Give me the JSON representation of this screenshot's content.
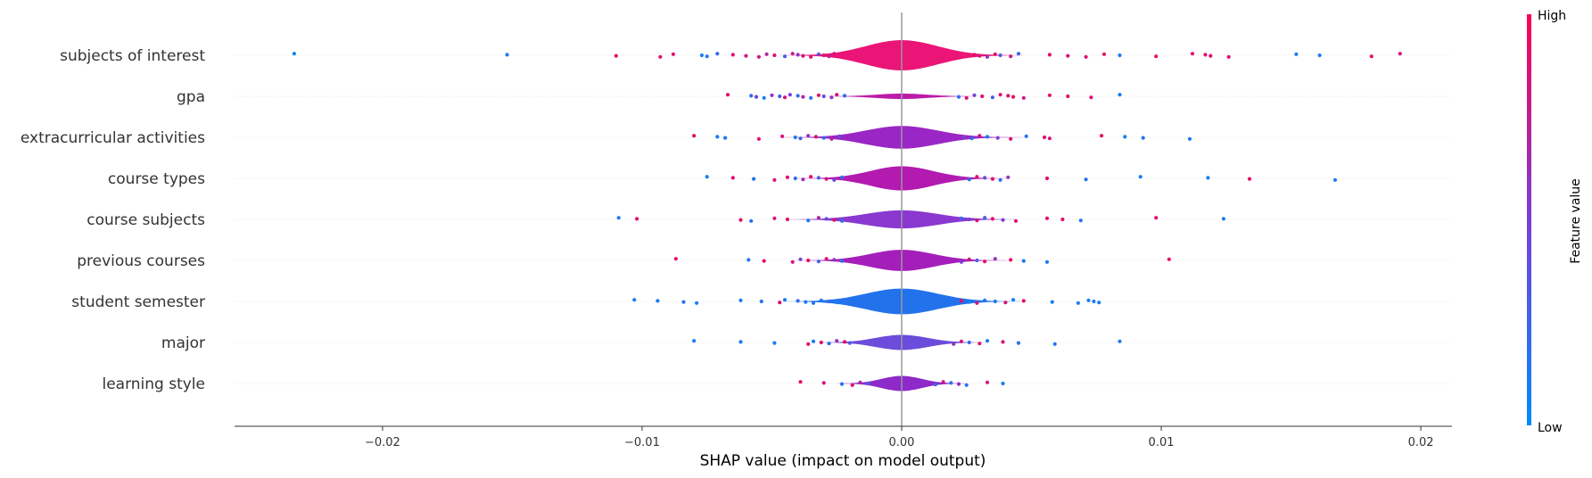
{
  "chart_data": {
    "type": "violin",
    "xlabel": "SHAP value (impact on model output)",
    "xlim": [
      -0.0257,
      0.0212
    ],
    "xticks": [
      -0.02,
      -0.01,
      0.0,
      0.01,
      0.02
    ],
    "xtick_labels": [
      "−0.02",
      "−0.01",
      "0.00",
      "0.01",
      "0.02"
    ],
    "colorbar": {
      "label": "Feature value",
      "high_label": "High",
      "low_label": "Low",
      "high_color": "#ff0052",
      "low_color": "#008bfb"
    },
    "features": [
      {
        "name": "subjects of interest",
        "violin_color": "#ea1577",
        "violin_spread": 0.0025,
        "violin_height": 1.0,
        "points": [
          [
            -0.0234,
            0.05
          ],
          [
            -0.0152,
            0.1
          ],
          [
            -0.011,
            0.9
          ],
          [
            -0.0093,
            0.9
          ],
          [
            -0.0088,
            0.9
          ],
          [
            -0.0077,
            0.1
          ],
          [
            -0.0075,
            0.1
          ],
          [
            -0.0071,
            0.2
          ],
          [
            -0.0065,
            0.9
          ],
          [
            -0.006,
            0.8
          ],
          [
            -0.0055,
            0.85
          ],
          [
            -0.0052,
            0.7
          ],
          [
            -0.0049,
            0.9
          ],
          [
            -0.0045,
            0.3
          ],
          [
            -0.0042,
            0.8
          ],
          [
            -0.004,
            0.6
          ],
          [
            -0.0038,
            0.85
          ],
          [
            -0.0035,
            0.9
          ],
          [
            -0.0032,
            0.4
          ],
          [
            -0.003,
            0.9
          ],
          [
            -0.0028,
            0.75
          ],
          [
            -0.0026,
            0.85
          ],
          [
            0.0028,
            0.9
          ],
          [
            0.003,
            0.85
          ],
          [
            0.0033,
            0.6
          ],
          [
            0.0036,
            0.9
          ],
          [
            0.0038,
            0.3
          ],
          [
            0.0042,
            0.8
          ],
          [
            0.0045,
            0.2
          ],
          [
            0.0057,
            0.9
          ],
          [
            0.0064,
            0.85
          ],
          [
            0.0071,
            0.9
          ],
          [
            0.0078,
            0.9
          ],
          [
            0.0084,
            0.1
          ],
          [
            0.0098,
            0.9
          ],
          [
            0.0112,
            0.9
          ],
          [
            0.0117,
            0.85
          ],
          [
            0.0119,
            0.9
          ],
          [
            0.0126,
            0.9
          ],
          [
            0.0152,
            0.1
          ],
          [
            0.0161,
            0.1
          ],
          [
            0.0181,
            0.9
          ],
          [
            0.0192,
            0.85
          ]
        ]
      },
      {
        "name": "gpa",
        "violin_color": "#bc1ba9",
        "violin_spread": 0.0018,
        "violin_height": 0.18,
        "points": [
          [
            -0.0067,
            0.9
          ],
          [
            -0.0058,
            0.2
          ],
          [
            -0.0056,
            0.4
          ],
          [
            -0.0053,
            0.1
          ],
          [
            -0.005,
            0.6
          ],
          [
            -0.0047,
            0.3
          ],
          [
            -0.0045,
            0.85
          ],
          [
            -0.0043,
            0.5
          ],
          [
            -0.004,
            0.2
          ],
          [
            -0.0038,
            0.7
          ],
          [
            -0.0035,
            0.15
          ],
          [
            -0.0032,
            0.9
          ],
          [
            -0.003,
            0.4
          ],
          [
            -0.0027,
            0.6
          ],
          [
            -0.0025,
            0.85
          ],
          [
            -0.0022,
            0.2
          ],
          [
            0.0022,
            0.2
          ],
          [
            0.0025,
            0.85
          ],
          [
            0.0028,
            0.5
          ],
          [
            0.0031,
            0.9
          ],
          [
            0.0035,
            0.3
          ],
          [
            0.0038,
            0.85
          ],
          [
            0.0041,
            0.9
          ],
          [
            0.0043,
            0.9
          ],
          [
            0.0047,
            0.8
          ],
          [
            0.0057,
            0.9
          ],
          [
            0.0064,
            0.9
          ],
          [
            0.0073,
            0.9
          ],
          [
            0.0084,
            0.1
          ]
        ]
      },
      {
        "name": "extracurricular activities",
        "violin_color": "#9a26c5",
        "violin_spread": 0.0025,
        "violin_height": 0.75,
        "points": [
          [
            -0.008,
            0.9
          ],
          [
            -0.0071,
            0.1
          ],
          [
            -0.0068,
            0.15
          ],
          [
            -0.0055,
            0.9
          ],
          [
            -0.0046,
            0.85
          ],
          [
            -0.0041,
            0.1
          ],
          [
            -0.0039,
            0.3
          ],
          [
            -0.0036,
            0.6
          ],
          [
            -0.0033,
            0.85
          ],
          [
            -0.003,
            0.2
          ],
          [
            -0.0027,
            0.7
          ],
          [
            -0.0024,
            0.4
          ],
          [
            0.0024,
            0.5
          ],
          [
            0.0027,
            0.2
          ],
          [
            0.003,
            0.85
          ],
          [
            0.0033,
            0.1
          ],
          [
            0.0037,
            0.5
          ],
          [
            0.0042,
            0.9
          ],
          [
            0.0048,
            0.15
          ],
          [
            0.0055,
            0.9
          ],
          [
            0.0057,
            0.85
          ],
          [
            0.0077,
            0.9
          ],
          [
            0.0086,
            0.1
          ],
          [
            0.0093,
            0.15
          ],
          [
            0.0111,
            0.1
          ]
        ]
      },
      {
        "name": "course types",
        "violin_color": "#b31ab0",
        "violin_spread": 0.0022,
        "violin_height": 0.8,
        "points": [
          [
            -0.0075,
            0.1
          ],
          [
            -0.0065,
            0.9
          ],
          [
            -0.0057,
            0.15
          ],
          [
            -0.0049,
            0.85
          ],
          [
            -0.0044,
            0.9
          ],
          [
            -0.0041,
            0.2
          ],
          [
            -0.0038,
            0.6
          ],
          [
            -0.0035,
            0.9
          ],
          [
            -0.0032,
            0.3
          ],
          [
            -0.0029,
            0.85
          ],
          [
            -0.0026,
            0.5
          ],
          [
            -0.0023,
            0.2
          ],
          [
            0.0023,
            0.6
          ],
          [
            0.0026,
            0.15
          ],
          [
            0.0029,
            0.85
          ],
          [
            0.0032,
            0.4
          ],
          [
            0.0035,
            0.9
          ],
          [
            0.0038,
            0.2
          ],
          [
            0.0041,
            0.6
          ],
          [
            0.0056,
            0.9
          ],
          [
            0.0071,
            0.15
          ],
          [
            0.0092,
            0.1
          ],
          [
            0.0118,
            0.1
          ],
          [
            0.0134,
            0.9
          ],
          [
            0.0167,
            0.1
          ]
        ]
      },
      {
        "name": "course subjects",
        "violin_color": "#8a38d0",
        "violin_spread": 0.0025,
        "violin_height": 0.6,
        "points": [
          [
            -0.0109,
            0.1
          ],
          [
            -0.0102,
            0.9
          ],
          [
            -0.0062,
            0.9
          ],
          [
            -0.0058,
            0.15
          ],
          [
            -0.0049,
            0.85
          ],
          [
            -0.0044,
            0.9
          ],
          [
            -0.0036,
            0.1
          ],
          [
            -0.0032,
            0.7
          ],
          [
            -0.0029,
            0.4
          ],
          [
            -0.0026,
            0.85
          ],
          [
            -0.0023,
            0.2
          ],
          [
            0.0023,
            0.2
          ],
          [
            0.0026,
            0.5
          ],
          [
            0.0029,
            0.85
          ],
          [
            0.0032,
            0.3
          ],
          [
            0.0035,
            0.9
          ],
          [
            0.0039,
            0.5
          ],
          [
            0.0044,
            0.9
          ],
          [
            0.0056,
            0.9
          ],
          [
            0.0062,
            0.9
          ],
          [
            0.0069,
            0.15
          ],
          [
            0.0098,
            0.9
          ],
          [
            0.0124,
            0.1
          ]
        ]
      },
      {
        "name": "previous courses",
        "violin_color": "#a41fba",
        "violin_spread": 0.0022,
        "violin_height": 0.7,
        "points": [
          [
            -0.0087,
            0.9
          ],
          [
            -0.0059,
            0.15
          ],
          [
            -0.0053,
            0.9
          ],
          [
            -0.0042,
            0.85
          ],
          [
            -0.0039,
            0.5
          ],
          [
            -0.0036,
            0.9
          ],
          [
            -0.0032,
            0.3
          ],
          [
            -0.0029,
            0.85
          ],
          [
            -0.0026,
            0.6
          ],
          [
            -0.0023,
            0.2
          ],
          [
            0.0023,
            0.5
          ],
          [
            0.0026,
            0.85
          ],
          [
            0.0029,
            0.3
          ],
          [
            0.0032,
            0.9
          ],
          [
            0.0036,
            0.6
          ],
          [
            0.0042,
            0.9
          ],
          [
            0.0047,
            0.15
          ],
          [
            0.0056,
            0.1
          ],
          [
            0.0103,
            0.9
          ]
        ]
      },
      {
        "name": "student semester",
        "violin_color": "#2272ec",
        "violin_spread": 0.0025,
        "violin_height": 0.85,
        "points": [
          [
            -0.0103,
            0.1
          ],
          [
            -0.0094,
            0.1
          ],
          [
            -0.0084,
            0.15
          ],
          [
            -0.0079,
            0.1
          ],
          [
            -0.0062,
            0.1
          ],
          [
            -0.0054,
            0.15
          ],
          [
            -0.0047,
            0.9
          ],
          [
            -0.0045,
            0.1
          ],
          [
            -0.004,
            0.2
          ],
          [
            -0.0037,
            0.1
          ],
          [
            -0.0034,
            0.15
          ],
          [
            -0.0031,
            0.1
          ],
          [
            -0.0028,
            0.2
          ],
          [
            -0.0025,
            0.1
          ],
          [
            -0.0022,
            0.15
          ],
          [
            0.0023,
            0.9
          ],
          [
            0.0026,
            0.1
          ],
          [
            0.0029,
            0.85
          ],
          [
            0.0032,
            0.15
          ],
          [
            0.0036,
            0.1
          ],
          [
            0.004,
            0.85
          ],
          [
            0.0043,
            0.1
          ],
          [
            0.0047,
            0.9
          ],
          [
            0.0058,
            0.1
          ],
          [
            0.0068,
            0.1
          ],
          [
            0.0072,
            0.1
          ],
          [
            0.0074,
            0.1
          ],
          [
            0.0076,
            0.1
          ]
        ]
      },
      {
        "name": "major",
        "violin_color": "#6b4cdb",
        "violin_spread": 0.0018,
        "violin_height": 0.5,
        "points": [
          [
            -0.008,
            0.1
          ],
          [
            -0.0062,
            0.1
          ],
          [
            -0.0049,
            0.1
          ],
          [
            -0.0036,
            0.9
          ],
          [
            -0.0034,
            0.1
          ],
          [
            -0.0031,
            0.85
          ],
          [
            -0.0028,
            0.2
          ],
          [
            -0.0025,
            0.6
          ],
          [
            -0.0022,
            0.9
          ],
          [
            -0.002,
            0.3
          ],
          [
            0.002,
            0.6
          ],
          [
            0.0023,
            0.85
          ],
          [
            0.0026,
            0.2
          ],
          [
            0.003,
            0.9
          ],
          [
            0.0033,
            0.1
          ],
          [
            0.0039,
            0.85
          ],
          [
            0.0045,
            0.15
          ],
          [
            0.0059,
            0.1
          ],
          [
            0.0084,
            0.1
          ]
        ]
      },
      {
        "name": "learning style",
        "violin_color": "#8d2ac9",
        "violin_spread": 0.0014,
        "violin_height": 0.5,
        "points": [
          [
            -0.0039,
            0.9
          ],
          [
            -0.003,
            0.85
          ],
          [
            -0.0023,
            0.15
          ],
          [
            -0.0019,
            0.9
          ],
          [
            -0.0016,
            0.7
          ],
          [
            -0.0013,
            0.3
          ],
          [
            0.0013,
            0.3
          ],
          [
            0.0016,
            0.8
          ],
          [
            0.0019,
            0.2
          ],
          [
            0.0022,
            0.6
          ],
          [
            0.0025,
            0.15
          ],
          [
            0.0033,
            0.85
          ],
          [
            0.0039,
            0.1
          ]
        ]
      }
    ]
  }
}
